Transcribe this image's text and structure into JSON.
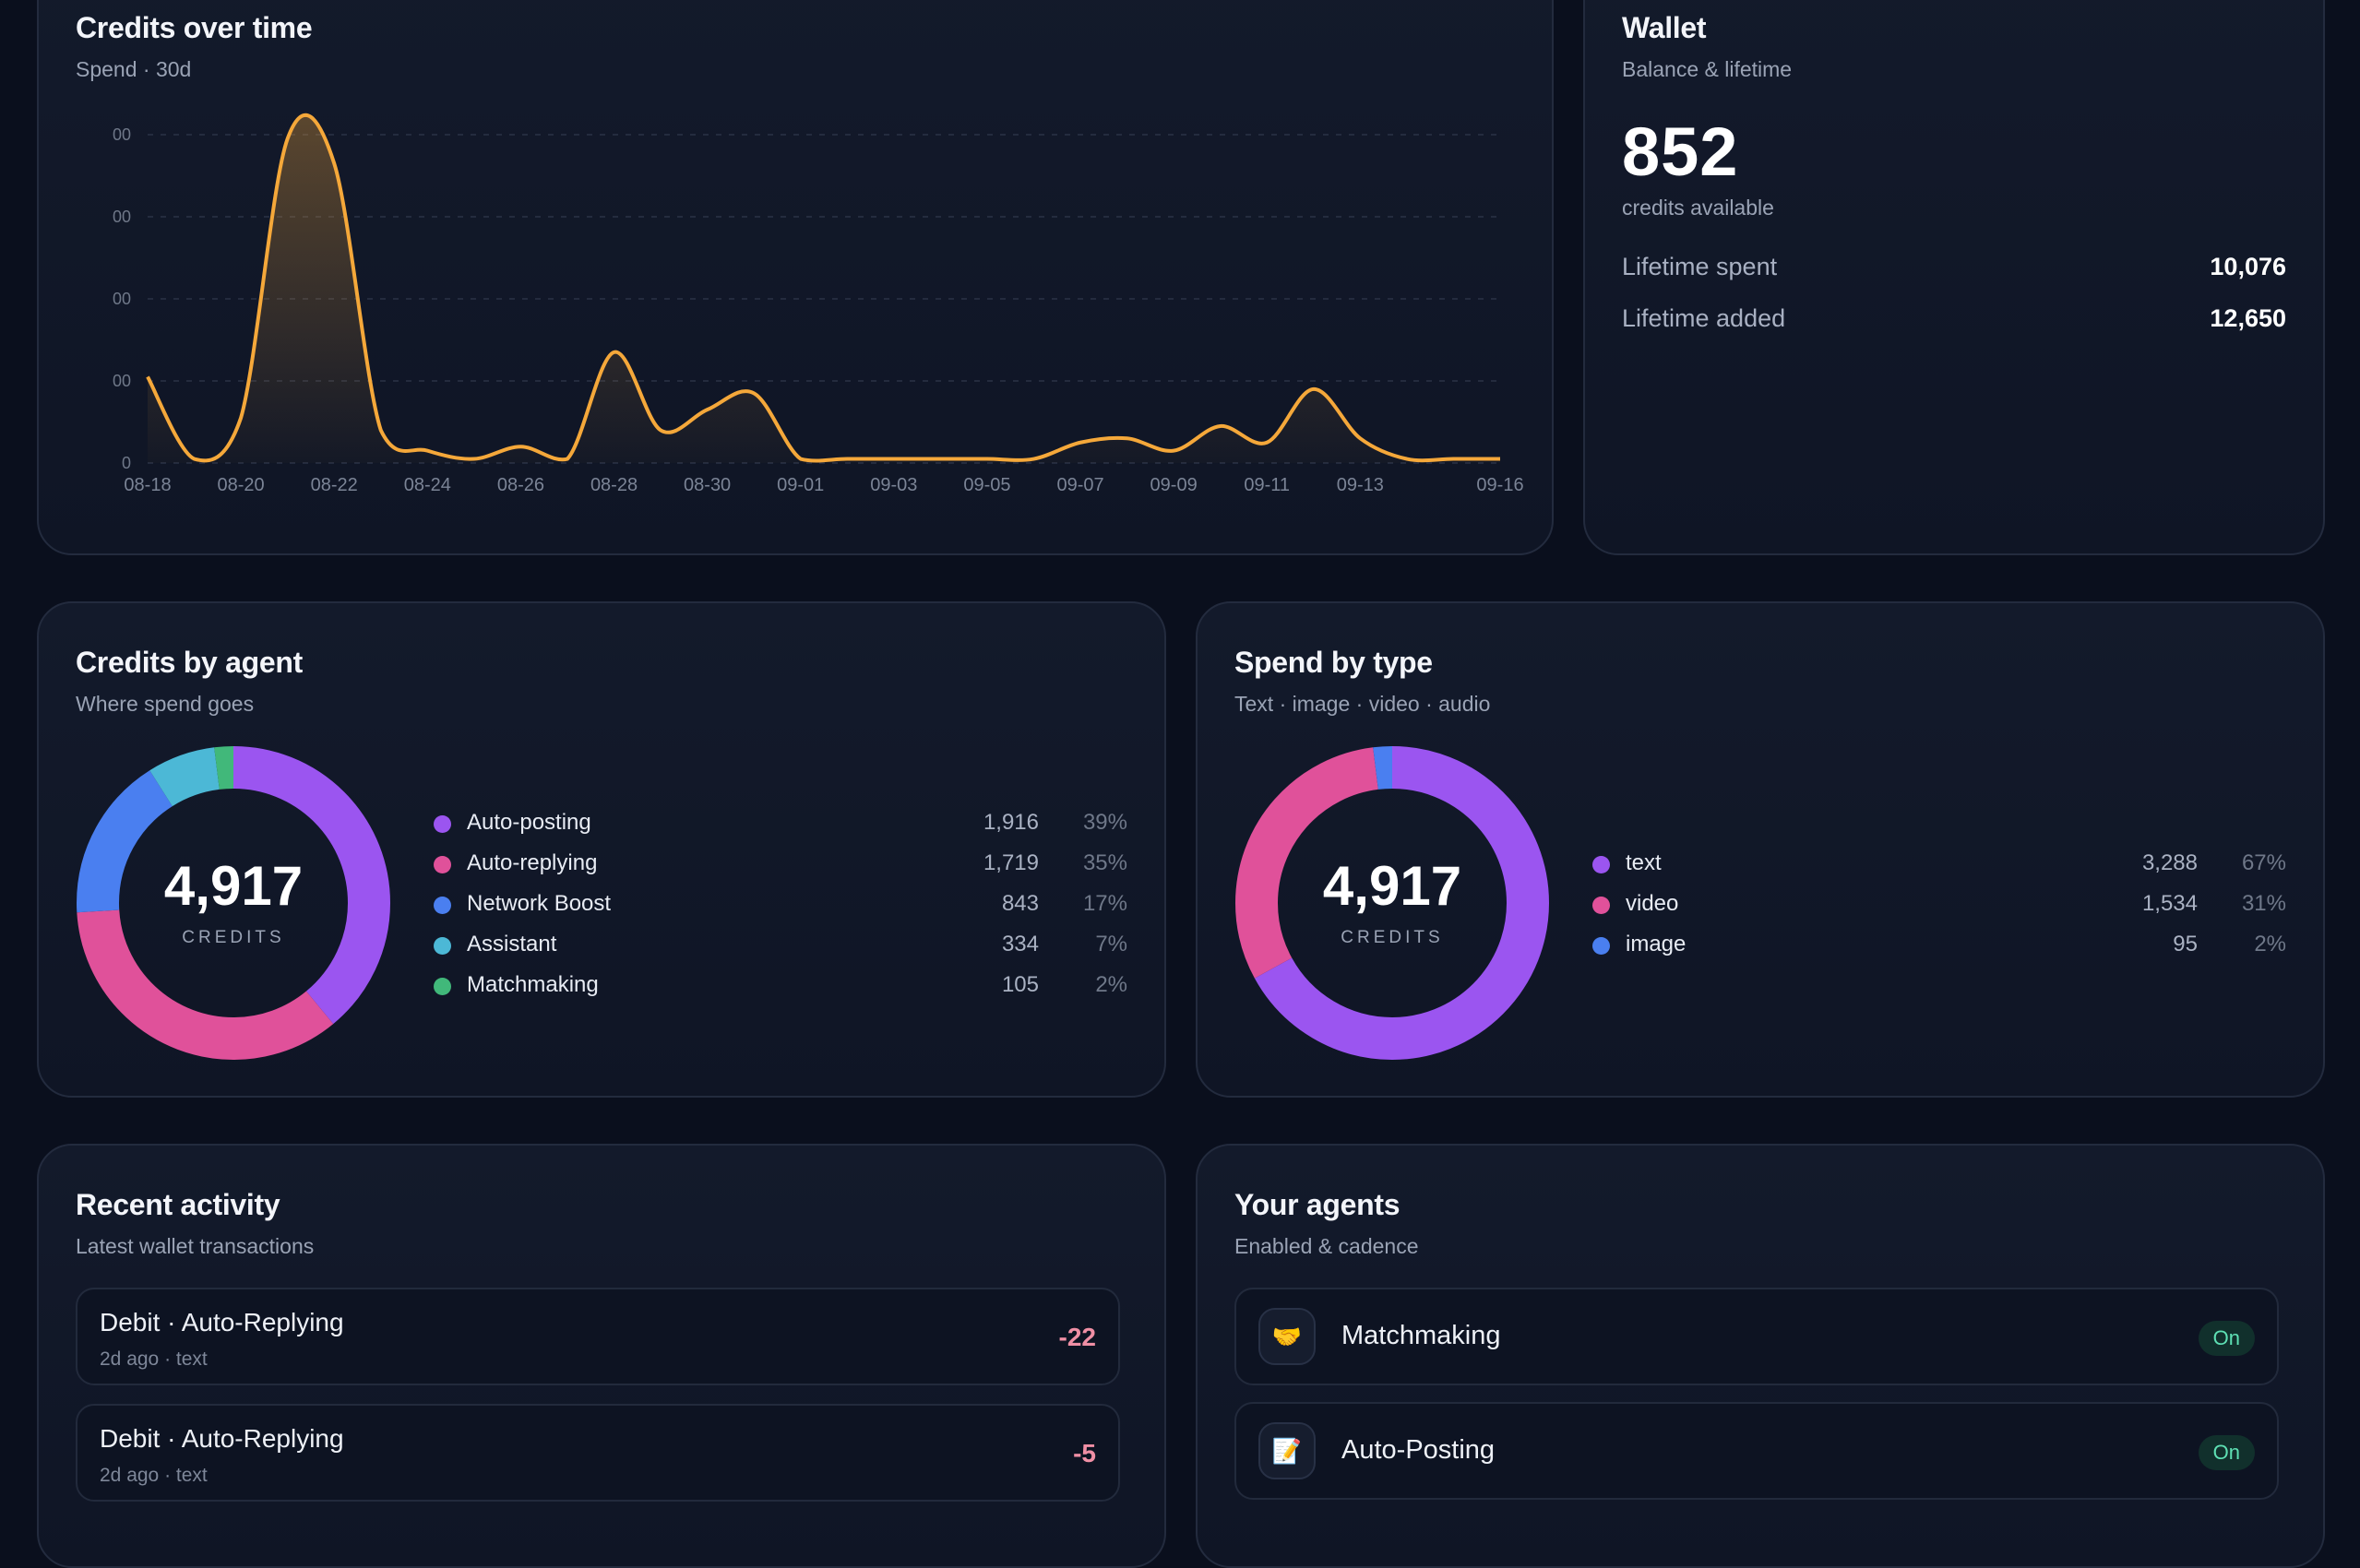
{
  "colors": {
    "accent": "#f5a83a",
    "purple": "#9b55f0",
    "pink": "#e0519a",
    "blue": "#4a7ff0",
    "cyan": "#4cb8d6",
    "green": "#41b87a"
  },
  "credits_over_time": {
    "title": "Credits over time",
    "subtitle": "Spend · 30d",
    "y_tick_labels": [
      "00",
      "00",
      "00",
      "00",
      "0"
    ],
    "x_tick_labels": [
      "08-18",
      "08-20",
      "08-22",
      "08-24",
      "08-26",
      "08-28",
      "08-30",
      "09-01",
      "09-03",
      "09-05",
      "09-07",
      "09-09",
      "09-11",
      "09-13",
      "09-16"
    ]
  },
  "chart_data": {
    "type": "area",
    "title": "Credits over time",
    "subtitle": "Spend · 30d",
    "xlabel": "",
    "ylabel": "",
    "x": [
      "08-18",
      "08-19",
      "08-20",
      "08-21",
      "08-22",
      "08-23",
      "08-24",
      "08-25",
      "08-26",
      "08-27",
      "08-28",
      "08-29",
      "08-30",
      "08-31",
      "09-01",
      "09-02",
      "09-03",
      "09-04",
      "09-05",
      "09-06",
      "09-07",
      "09-08",
      "09-09",
      "09-10",
      "09-11",
      "09-12",
      "09-13",
      "09-14",
      "09-15",
      "09-16"
    ],
    "values": [
      21,
      1,
      11,
      79,
      73,
      8,
      3,
      1,
      4,
      1,
      27,
      8,
      13,
      17,
      1,
      1,
      1,
      1,
      1,
      1,
      5,
      6,
      3,
      9,
      5,
      18,
      6,
      1,
      1,
      1
    ],
    "ylim": [
      0,
      80
    ],
    "y_grid": [
      0,
      20,
      40,
      60,
      80
    ],
    "grid": true,
    "legend": "none"
  },
  "wallet": {
    "title": "Wallet",
    "subtitle": "Balance & lifetime",
    "balance": "852",
    "balance_label": "credits available",
    "lifetime_spent_label": "Lifetime spent",
    "lifetime_spent": "10,076",
    "lifetime_added_label": "Lifetime added",
    "lifetime_added": "12,650"
  },
  "credits_by_agent": {
    "title": "Credits by agent",
    "subtitle": "Where spend goes",
    "total": "4,917",
    "total_label": "CREDITS",
    "items": [
      {
        "name": "Auto-posting",
        "value": "1,916",
        "pct": "39%",
        "color": "#9b55f0",
        "share": 39
      },
      {
        "name": "Auto-replying",
        "value": "1,719",
        "pct": "35%",
        "color": "#e0519a",
        "share": 35
      },
      {
        "name": "Network Boost",
        "value": "843",
        "pct": "17%",
        "color": "#4a7ff0",
        "share": 17
      },
      {
        "name": "Assistant",
        "value": "334",
        "pct": "7%",
        "color": "#4cb8d6",
        "share": 7
      },
      {
        "name": "Matchmaking",
        "value": "105",
        "pct": "2%",
        "color": "#41b87a",
        "share": 2
      }
    ]
  },
  "spend_by_type": {
    "title": "Spend by type",
    "subtitle": "Text · image · video · audio",
    "total": "4,917",
    "total_label": "CREDITS",
    "items": [
      {
        "name": "text",
        "value": "3,288",
        "pct": "67%",
        "color": "#9b55f0",
        "share": 67
      },
      {
        "name": "video",
        "value": "1,534",
        "pct": "31%",
        "color": "#e0519a",
        "share": 31
      },
      {
        "name": "image",
        "value": "95",
        "pct": "2%",
        "color": "#4a7ff0",
        "share": 2
      }
    ]
  },
  "recent_activity": {
    "title": "Recent activity",
    "subtitle": "Latest wallet transactions",
    "items": [
      {
        "title": "Debit · Auto-Replying",
        "meta": "2d ago · text",
        "amount": "-22"
      },
      {
        "title": "Debit · Auto-Replying",
        "meta": "2d ago · text",
        "amount": "-5"
      }
    ]
  },
  "your_agents": {
    "title": "Your agents",
    "subtitle": "Enabled & cadence",
    "items": [
      {
        "name": "Matchmaking",
        "icon": "handshake-icon",
        "glyph": "🤝",
        "status": "On"
      },
      {
        "name": "Auto-Posting",
        "icon": "memo-icon",
        "glyph": "📝",
        "status": "On"
      }
    ]
  }
}
